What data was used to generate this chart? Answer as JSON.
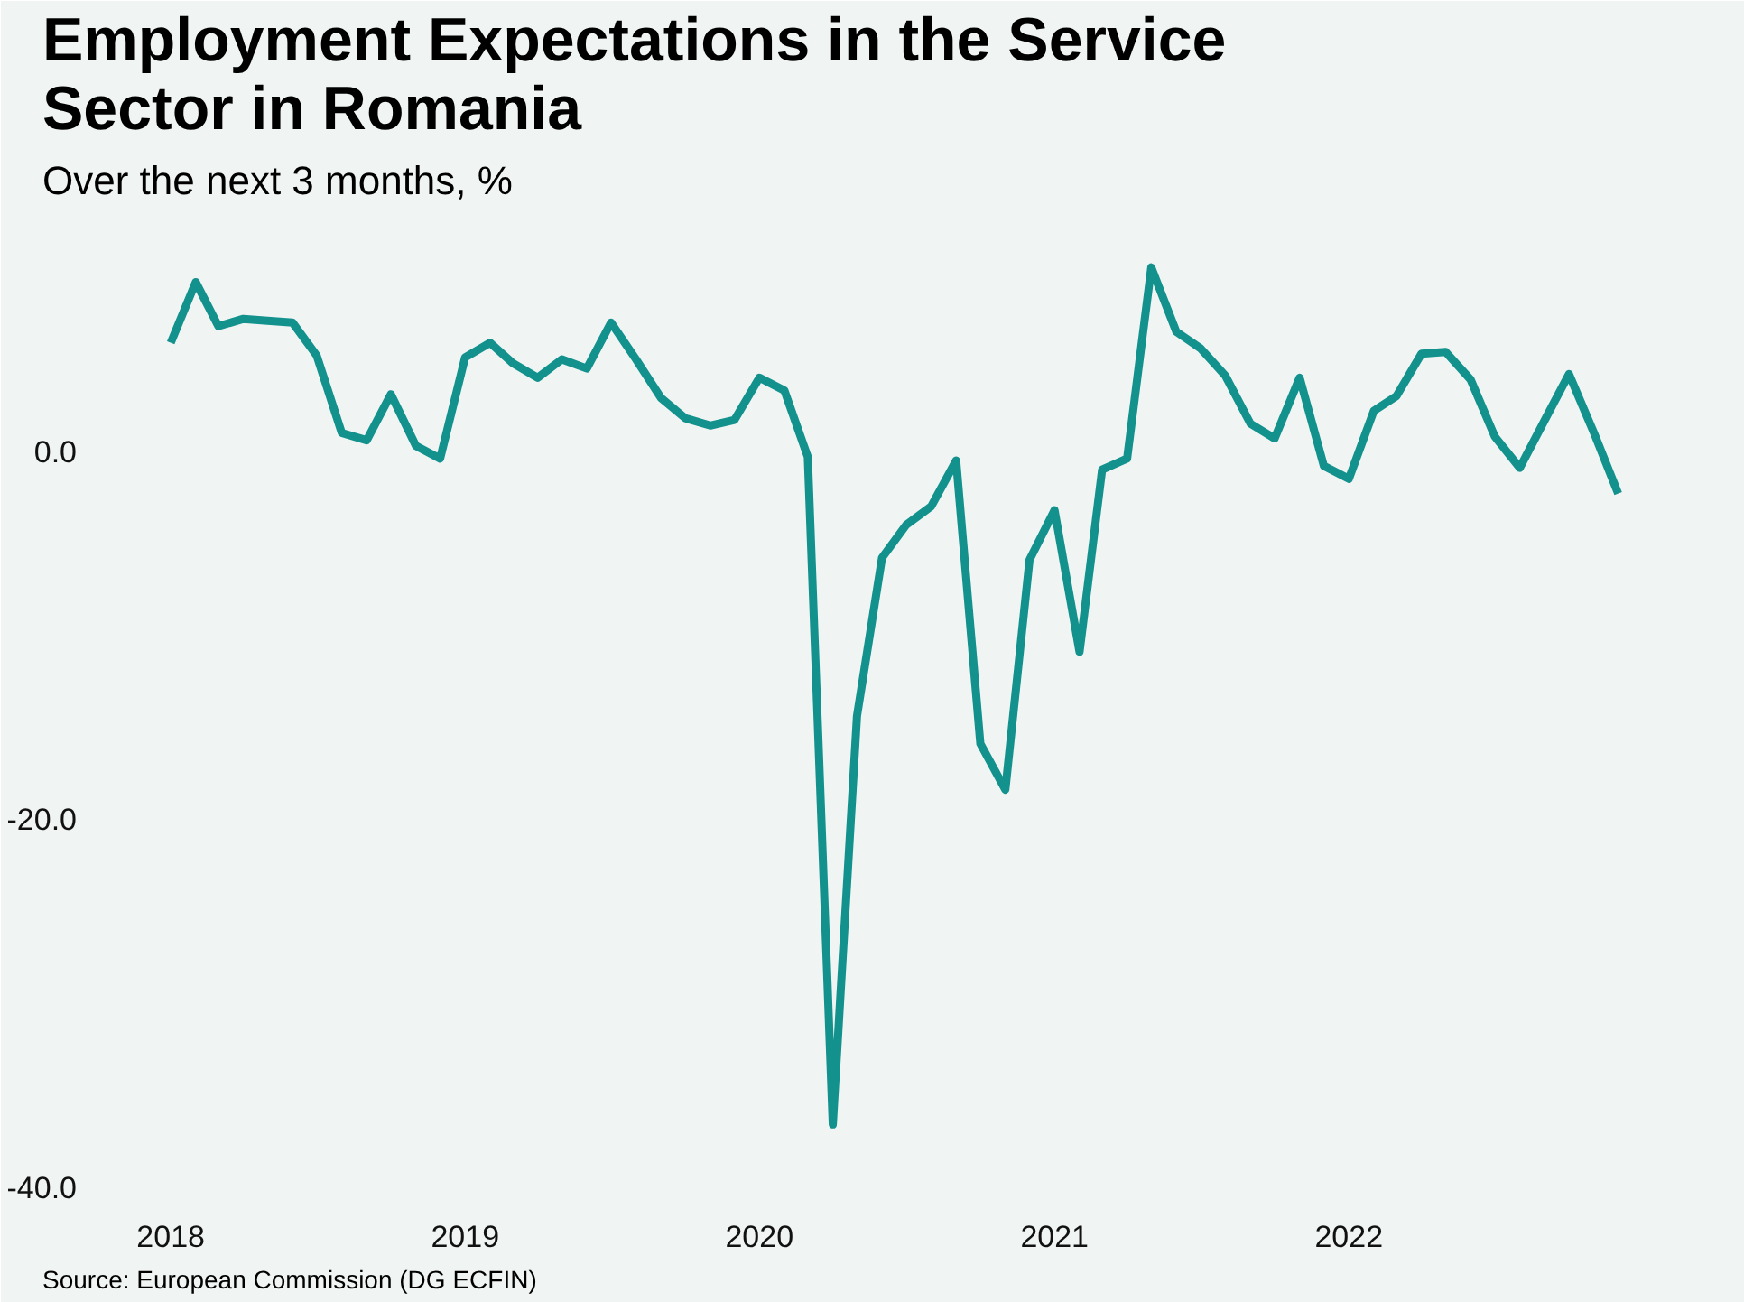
{
  "chart_data": {
    "type": "line",
    "title": "Employment Expectations in the Service\nSector in Romania",
    "subtitle": "Over the next 3 months, %",
    "annotations": [
      "Source: European Commission (DG ECFIN)"
    ],
    "x": [
      "2018-01",
      "2018-02",
      "2018-03",
      "2018-04",
      "2018-05",
      "2018-06",
      "2018-07",
      "2018-08",
      "2018-09",
      "2018-10",
      "2018-11",
      "2018-12",
      "2019-01",
      "2019-02",
      "2019-03",
      "2019-04",
      "2019-05",
      "2019-06",
      "2019-07",
      "2019-08",
      "2019-09",
      "2019-10",
      "2019-11",
      "2019-12",
      "2020-01",
      "2020-02",
      "2020-03",
      "2020-04",
      "2020-05",
      "2020-06",
      "2020-07",
      "2020-08",
      "2020-09",
      "2020-10",
      "2020-11",
      "2020-12",
      "2021-01",
      "2021-02",
      "2021-03",
      "2021-04",
      "2021-05",
      "2021-06",
      "2021-07",
      "2021-08",
      "2021-09",
      "2021-10",
      "2021-11",
      "2021-12",
      "2022-01",
      "2022-02",
      "2022-03",
      "2022-04",
      "2022-05",
      "2022-06",
      "2022-07",
      "2022-08",
      "2022-09",
      "2022-10",
      "2022-11",
      "2022-12"
    ],
    "series": [
      {
        "color": "#12918d",
        "values": [
          5.9,
          9.2,
          6.8,
          7.2,
          7.1,
          7.0,
          5.2,
          1.0,
          0.6,
          3.1,
          0.3,
          -0.4,
          5.1,
          5.9,
          4.8,
          4.0,
          5.0,
          4.5,
          7.0,
          5.0,
          2.9,
          1.8,
          1.4,
          1.7,
          4.0,
          3.3,
          -0.3,
          -36.6,
          -14.4,
          -5.8,
          -4.0,
          -3.0,
          -0.5,
          -15.9,
          -18.4,
          -5.9,
          -3.2,
          -10.9,
          -1.0,
          -0.4,
          10.0,
          6.5,
          5.6,
          4.1,
          1.5,
          0.7,
          4.0,
          -0.8,
          -1.5,
          2.2,
          3.0,
          5.3,
          5.4,
          3.9,
          0.8,
          -0.9,
          1.7,
          4.2,
          1.0,
          -2.3
        ]
      }
    ],
    "xlim": [
      "2017-10",
      "2023-03"
    ],
    "ylim": [
      -41,
      13
    ],
    "xticks": [
      {
        "value": "2018-01",
        "label": "2018"
      },
      {
        "value": "2019-01",
        "label": "2019"
      },
      {
        "value": "2020-01",
        "label": "2020"
      },
      {
        "value": "2021-01",
        "label": "2021"
      },
      {
        "value": "2022-01",
        "label": "2022"
      }
    ],
    "yticks": [
      {
        "value": 0,
        "label": "0.0"
      },
      {
        "value": -20,
        "label": "-20.0"
      },
      {
        "value": -40,
        "label": "-40.0"
      }
    ],
    "grid": false,
    "line_style": "solid",
    "marker": "none"
  }
}
